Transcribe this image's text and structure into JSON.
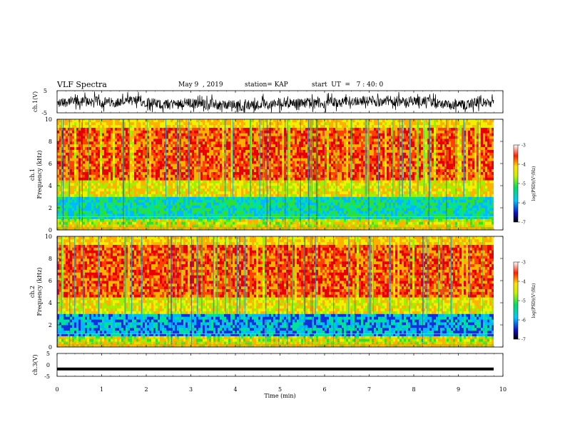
{
  "header": {
    "title": "VLF Spectra",
    "date": "May 9  , 2019",
    "station": "station= KAP",
    "start": "start  UT  =   7 : 40: 0"
  },
  "chart_data": [
    {
      "type": "line",
      "panel": "ch1-waveform",
      "ylabel": "ch.1(V)",
      "ylim": [
        -5,
        5
      ],
      "yticks": [
        "5",
        "-5"
      ],
      "xlim": [
        0,
        10
      ],
      "description_of_signal": "noisy waveform, amplitude roughly -5 to 5 V"
    },
    {
      "type": "heatmap",
      "panel": "ch1-spectrogram",
      "ylabel_top": "ch.1",
      "ylabel": "Frequency  (kHz)",
      "ylim": [
        0,
        10
      ],
      "yticks": [
        "0",
        "2",
        "4",
        "6",
        "8",
        "10"
      ],
      "xlim": [
        0,
        10
      ],
      "colorbar": {
        "label": "log(PSD)(V²/Hz)",
        "range": [
          -7,
          -3
        ],
        "ticks": [
          "-3",
          "-4",
          "-5",
          "-6",
          "-7"
        ]
      }
    },
    {
      "type": "heatmap",
      "panel": "ch2-spectrogram",
      "ylabel_top": "ch.2",
      "ylabel": "Frequency  (kHz)",
      "ylim": [
        0,
        10
      ],
      "yticks": [
        "0",
        "2",
        "4",
        "6",
        "8",
        "10"
      ],
      "xlim": [
        0,
        10
      ],
      "colorbar": {
        "label": "log(PSD)(V²/Hz)",
        "range": [
          -7,
          -3
        ],
        "ticks": [
          "-3",
          "-4",
          "-5",
          "-6",
          "-7"
        ]
      }
    },
    {
      "type": "line",
      "panel": "ch3-waveform",
      "ylabel": "ch.3(V)",
      "ylim": [
        -5,
        5
      ],
      "yticks": [
        "5",
        "0",
        "-5"
      ],
      "xlim": [
        0,
        10
      ],
      "xlabel": "Time  (min)",
      "xticks": [
        "0",
        "1",
        "2",
        "3",
        "4",
        "5",
        "6",
        "7",
        "8",
        "9",
        "10"
      ],
      "constant_value": -1.8
    }
  ]
}
